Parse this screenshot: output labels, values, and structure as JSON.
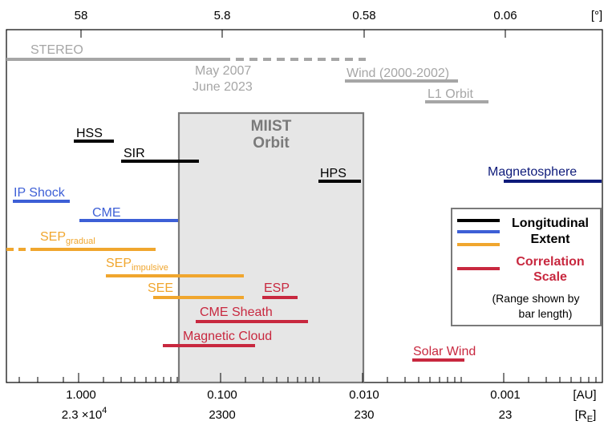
{
  "top_axis": {
    "unit": "[°]",
    "ticks": [
      "58",
      "5.8",
      "0.58",
      "0.06"
    ]
  },
  "bottom_axis": {
    "unit_au": "[AU]",
    "unit_re_main": "[R",
    "unit_re_sub": "E",
    "unit_re_end": "]",
    "au_ticks": [
      "1.000",
      "0.100",
      "0.010",
      "0.001"
    ],
    "re_ticks": [
      "2300",
      "230",
      "23"
    ],
    "re_first_mantissa": "2.3 ×10",
    "re_first_exp": "4"
  },
  "orbit_box": {
    "line1": "MIIST",
    "line2": "Orbit"
  },
  "reference": {
    "stereo": "STEREO",
    "stereo_date1": "May 2007",
    "stereo_date2": "June 2023",
    "wind": "Wind (2000-2002)",
    "l1": "L1 Orbit"
  },
  "labels": {
    "hss": "HSS",
    "sir": "SIR",
    "hps": "HPS",
    "magnetosphere": "Magnetosphere",
    "ip_shock": "IP Shock",
    "cme": "CME",
    "sep_gradual_main": "SEP",
    "sep_gradual_sub": "gradual",
    "sep_impulsive_main": "SEP",
    "sep_impulsive_sub": "impulsive",
    "see": "SEE",
    "esp": "ESP",
    "cme_sheath": "CME Sheath",
    "magnetic_cloud": "Magnetic Cloud",
    "solar_wind": "Solar Wind"
  },
  "legend": {
    "longitudinal_line1": "Longitudinal",
    "longitudinal_line2": "Extent",
    "correlation_line1": "Correlation",
    "correlation_line2": "Scale",
    "note_line1": "(Range shown by",
    "note_line2": "bar length)"
  },
  "colors": {
    "black": "#000000",
    "blue": "#3d5fd6",
    "orange": "#f0a62e",
    "red": "#c8283f",
    "navy": "#0d1a7a",
    "gray": "#a6a6a6",
    "box_fill": "#e6e6e6",
    "box_stroke": "#7a7a7a"
  }
}
